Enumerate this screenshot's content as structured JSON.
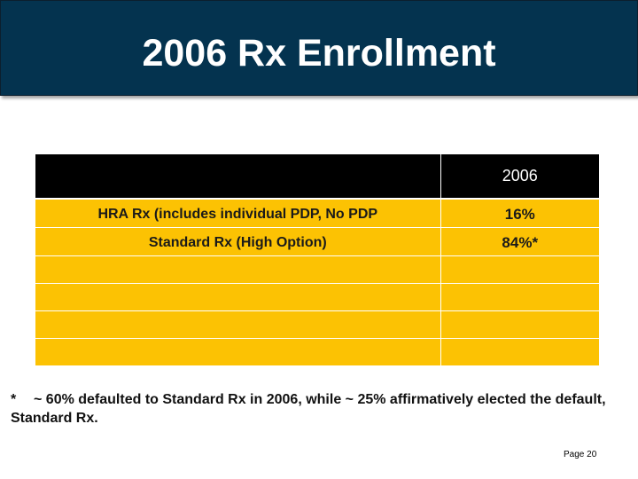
{
  "slide": {
    "title": "2006 Rx Enrollment",
    "page_label": "Page 20"
  },
  "table": {
    "header": [
      "",
      "2006"
    ],
    "rows": [
      {
        "plan": "HRA Rx (includes individual PDP, No PDP",
        "value": "16%"
      },
      {
        "plan": "Standard Rx (High Option)",
        "value": "84%*"
      },
      {
        "plan": "",
        "value": ""
      },
      {
        "plan": "",
        "value": ""
      },
      {
        "plan": "",
        "value": ""
      },
      {
        "plan": "",
        "value": ""
      }
    ]
  },
  "footnote": {
    "marker": "*",
    "text": "~ 60% defaulted to Standard Rx in 2006, while ~ 25% affirmatively elected the default, Standard Rx."
  },
  "colors": {
    "title_bg": "#04334f",
    "header_bg": "#000000",
    "row_bg": "#fcc203"
  }
}
